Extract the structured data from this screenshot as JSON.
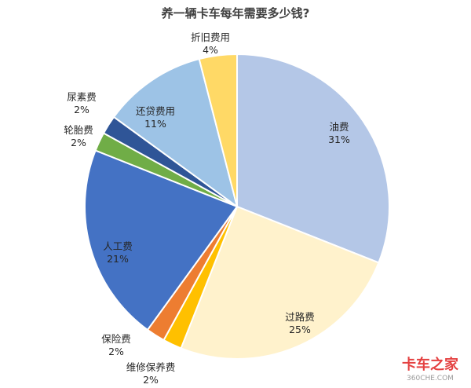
{
  "chart_data": {
    "type": "pie",
    "title": "养一辆卡车每年需要多少钱?",
    "slices": [
      {
        "label": "油费",
        "value": 31,
        "pct": "31%",
        "color": "#b4c7e7"
      },
      {
        "label": "过路费",
        "value": 25,
        "pct": "25%",
        "color": "#fff2cc"
      },
      {
        "label": "维修保养费",
        "value": 2,
        "pct": "2%",
        "color": "#ffc000"
      },
      {
        "label": "保险费",
        "value": 2,
        "pct": "2%",
        "color": "#ed7d31"
      },
      {
        "label": "人工费",
        "value": 21,
        "pct": "21%",
        "color": "#4472c4"
      },
      {
        "label": "轮胎费",
        "value": 2,
        "pct": "2%",
        "color": "#70ad47"
      },
      {
        "label": "尿素费",
        "value": 2,
        "pct": "2%",
        "color": "#2f5597"
      },
      {
        "label": "还贷费用",
        "value": 11,
        "pct": "11%",
        "color": "#9dc3e6"
      },
      {
        "label": "折旧费用",
        "value": 4,
        "pct": "4%",
        "color": "#ffd966"
      }
    ]
  },
  "watermark": {
    "brand": "卡车之家",
    "sub": "360CHE.COM"
  }
}
